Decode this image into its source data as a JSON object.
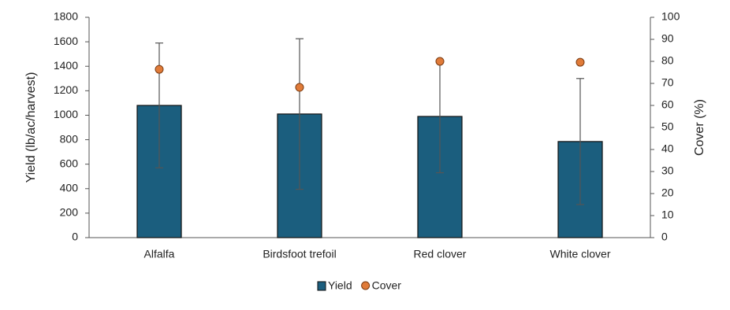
{
  "chart_data": {
    "type": "bar",
    "categories": [
      "Alfalfa",
      "Birdsfoot trefoil",
      "Red clover",
      "White clover"
    ],
    "series": [
      {
        "name": "Yield",
        "type": "bar",
        "color": "#1b5e7e",
        "values": [
          1080,
          1010,
          990,
          785
        ],
        "errors": [
          510,
          615,
          460,
          515
        ]
      },
      {
        "name": "Cover",
        "type": "scatter",
        "axis": "y2",
        "color": "#e07b39",
        "values": [
          76.4,
          68.2,
          80,
          79.6
        ]
      }
    ],
    "ylabel": "Yield (lb/ac/harvest)",
    "y2label": "Cover (%)",
    "ylim": [
      0,
      1800
    ],
    "yticks": [
      0,
      200,
      400,
      600,
      800,
      1000,
      1200,
      1400,
      1600,
      1800
    ],
    "y2lim": [
      0,
      100
    ],
    "y2ticks": [
      0,
      10,
      20,
      30,
      40,
      50,
      60,
      70,
      80,
      90,
      100
    ],
    "legend": "bottom"
  }
}
